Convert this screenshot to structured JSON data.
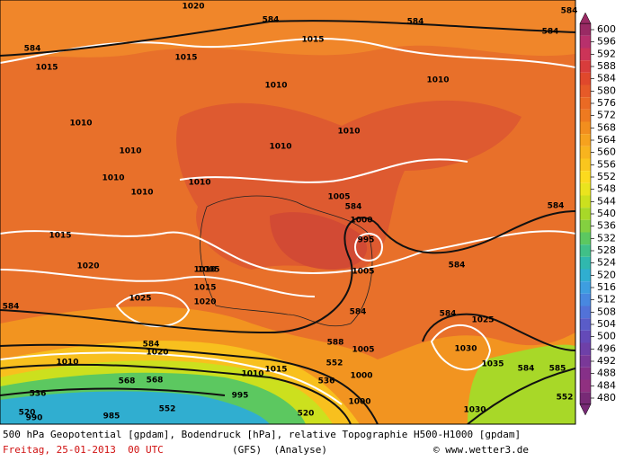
{
  "colorbar": {
    "values": [
      600,
      596,
      592,
      588,
      584,
      580,
      576,
      572,
      568,
      564,
      560,
      556,
      552,
      548,
      544,
      540,
      536,
      532,
      528,
      524,
      520,
      516,
      512,
      508,
      504,
      500,
      496,
      492,
      488,
      484,
      480
    ],
    "colors": [
      "#9a2a64",
      "#b8306c",
      "#cc3458",
      "#d83c3c",
      "#e0482c",
      "#e65a28",
      "#ea6a24",
      "#ee7a20",
      "#f28e1e",
      "#f6a21e",
      "#f8b41e",
      "#fac61e",
      "#fcda1e",
      "#eae41e",
      "#cce01e",
      "#a8d828",
      "#84d040",
      "#5cc860",
      "#40c088",
      "#30b8ae",
      "#30aed0",
      "#3e9ee0",
      "#4888e0",
      "#5272d8",
      "#5a5cc8",
      "#644ab8",
      "#6e40a8",
      "#7a3898",
      "#863088",
      "#903080",
      "#782a76"
    ]
  },
  "map_labels": [
    "1020",
    "584",
    "584",
    "1015",
    "584",
    "584",
    "584",
    "1015",
    "1015",
    "1010",
    "1010",
    "1010",
    "1010",
    "1010",
    "1010",
    "1010",
    "1010",
    "1010",
    "1005",
    "1005",
    "1000",
    "995",
    "1005",
    "584",
    "584",
    "1015",
    "1020",
    "1010",
    "1015",
    "1020",
    "1025",
    "584",
    "584",
    "584",
    "584",
    "1025",
    "1020",
    "584",
    "588",
    "1005",
    "1030",
    "1035",
    "568",
    "552",
    "1010",
    "1015",
    "1010",
    "536",
    "552",
    "568",
    "1000",
    "995",
    "536",
    "520",
    "520",
    "990",
    "985",
    "1030",
    "552",
    "1000",
    "585",
    "584"
  ],
  "caption": {
    "line1": "500 hPa Geopotential [gpdam], Bodendruck [hPa], relative Topographie H500-H1000 [gpdam]",
    "date": "Freitag, 25-01-2013  00 UTC",
    "model": "(GFS)  (Analyse)",
    "copyright": "© www.wetter3.de"
  }
}
